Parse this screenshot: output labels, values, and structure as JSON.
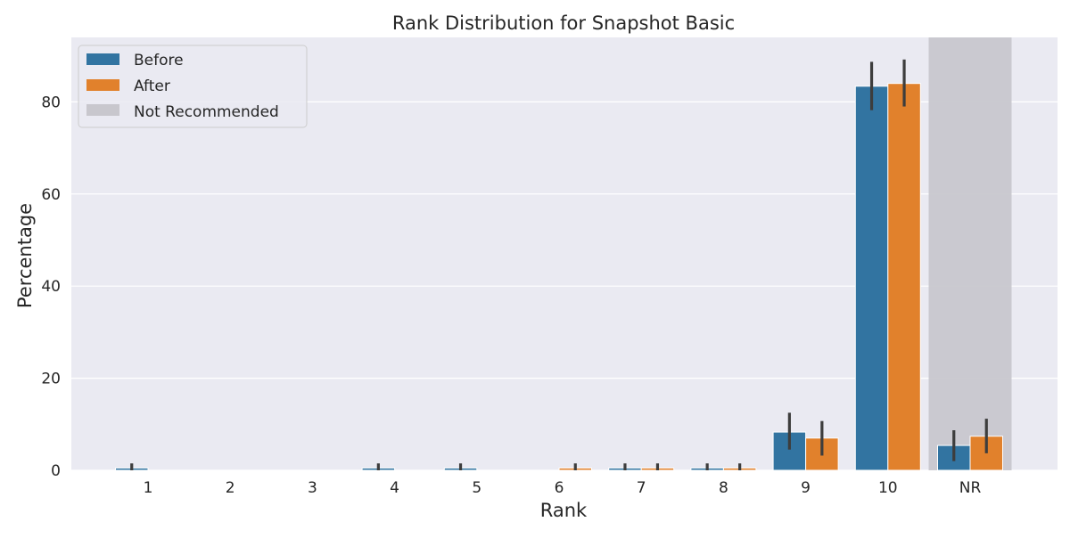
{
  "chart_data": {
    "type": "bar",
    "title": "Rank Distribution for Snapshot Basic",
    "xlabel": "Rank",
    "ylabel": "Percentage",
    "categories": [
      "1",
      "2",
      "3",
      "4",
      "5",
      "6",
      "7",
      "8",
      "9",
      "10",
      "NR"
    ],
    "series": [
      {
        "name": "Before",
        "color": "#3274a1",
        "values": [
          0.5,
          0,
          0,
          0.5,
          0.5,
          0,
          0.5,
          0.5,
          8.3,
          83.4,
          5.4
        ],
        "err_low": [
          0,
          0,
          0,
          0,
          0,
          0,
          0,
          0,
          4.5,
          78.2,
          2.0
        ],
        "err_high": [
          1.5,
          0,
          0,
          1.5,
          1.5,
          0,
          1.5,
          1.5,
          12.5,
          88.7,
          8.7
        ]
      },
      {
        "name": "After",
        "color": "#e1812c",
        "values": [
          0,
          0,
          0,
          0,
          0,
          0.5,
          0.5,
          0.5,
          7.0,
          84.0,
          7.4
        ],
        "err_low": [
          0,
          0,
          0,
          0,
          0,
          0,
          0,
          0,
          3.2,
          79.0,
          3.7
        ],
        "err_high": [
          0,
          0,
          0,
          0,
          0,
          1.5,
          1.5,
          1.5,
          10.7,
          89.2,
          11.2
        ]
      }
    ],
    "highlight": {
      "category": "NR",
      "label": "Not Recommended",
      "color": "#c8c7cd"
    },
    "yticks": [
      0,
      20,
      40,
      60,
      80
    ],
    "ylim": [
      0,
      94
    ],
    "grid": true,
    "legend_position": "top-left",
    "background_color": "#eaeaf2"
  }
}
